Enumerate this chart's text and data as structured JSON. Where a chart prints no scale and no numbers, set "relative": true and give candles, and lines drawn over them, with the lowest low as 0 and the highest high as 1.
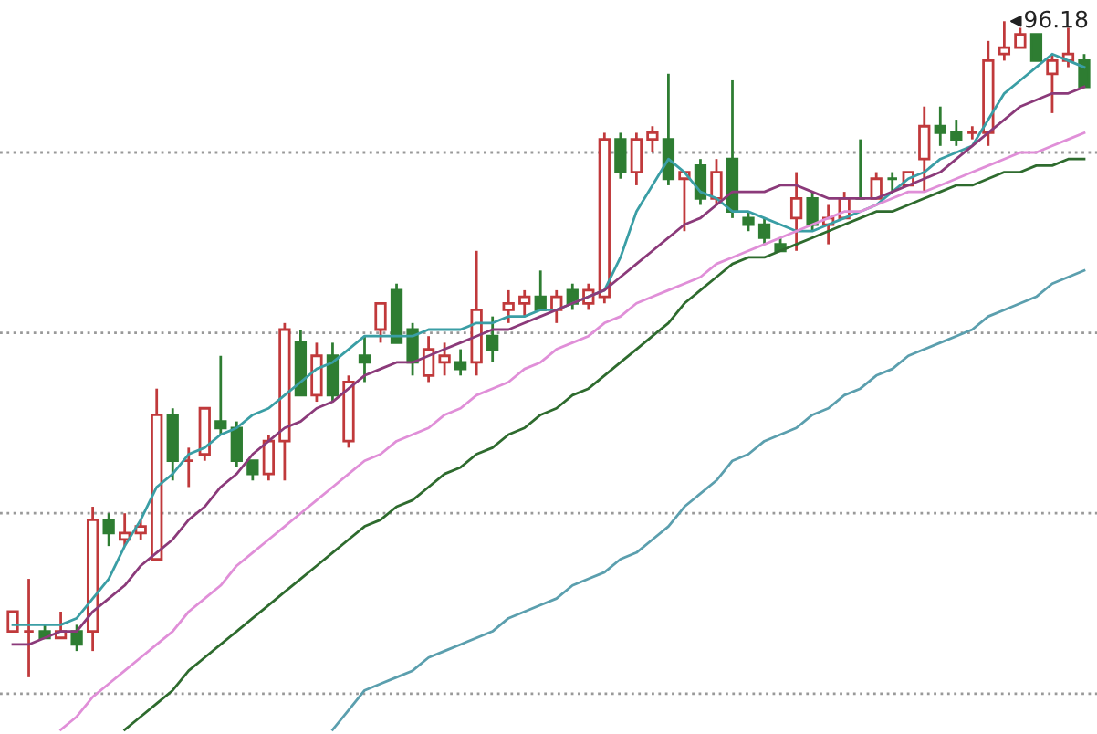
{
  "chart_data": {
    "type": "candlestick",
    "relative": true,
    "categories": [
      null,
      null,
      null,
      null,
      null,
      null,
      null,
      null,
      null,
      null,
      null,
      null,
      null,
      null,
      null,
      null,
      null,
      null,
      null,
      null,
      null,
      null,
      null,
      null,
      null,
      null,
      null,
      null,
      null,
      null,
      null,
      null,
      null,
      null,
      null,
      null,
      null,
      null,
      null,
      null,
      null,
      null,
      null,
      null,
      null,
      null,
      null,
      null,
      null,
      null,
      null,
      null,
      null,
      null,
      null,
      null,
      null,
      null,
      null,
      null,
      null,
      null,
      null,
      null,
      null,
      null,
      null,
      null
    ],
    "ohlc": [
      [
        0.07,
        0.1,
        0.07,
        0.1
      ],
      [
        0.07,
        0.15,
        0,
        0.07
      ],
      [
        0.07,
        0.08,
        0.06,
        0.06
      ],
      [
        0.06,
        0.1,
        0.06,
        0.07
      ],
      [
        0.07,
        0.08,
        0.04,
        0.05
      ],
      [
        0.07,
        0.26,
        0.04,
        0.24
      ],
      [
        0.24,
        0.25,
        0.2,
        0.22
      ],
      [
        0.21,
        0.25,
        0.2,
        0.22
      ],
      [
        0.22,
        0.24,
        0.21,
        0.23
      ],
      [
        0.18,
        0.44,
        0.18,
        0.4
      ],
      [
        0.4,
        0.41,
        0.3,
        0.33
      ],
      [
        0.33,
        0.35,
        0.29,
        0.33
      ],
      [
        0.34,
        0.41,
        0.33,
        0.41
      ],
      [
        0.39,
        0.49,
        0.37,
        0.38
      ],
      [
        0.38,
        0.39,
        0.32,
        0.33
      ],
      [
        0.33,
        0.33,
        0.3,
        0.31
      ],
      [
        0.31,
        0.37,
        0.3,
        0.36
      ],
      [
        0.36,
        0.54,
        0.3,
        0.53
      ],
      [
        0.51,
        0.53,
        0.43,
        0.43
      ],
      [
        0.43,
        0.51,
        0.42,
        0.49
      ],
      [
        0.49,
        0.51,
        0.42,
        0.43
      ],
      [
        0.36,
        0.46,
        0.35,
        0.45
      ],
      [
        0.49,
        0.52,
        0.45,
        0.48
      ],
      [
        0.53,
        0.57,
        0.51,
        0.57
      ],
      [
        0.59,
        0.6,
        0.51,
        0.51
      ],
      [
        0.53,
        0.54,
        0.46,
        0.48
      ],
      [
        0.46,
        0.52,
        0.45,
        0.5
      ],
      [
        0.48,
        0.51,
        0.46,
        0.49
      ],
      [
        0.48,
        0.5,
        0.46,
        0.47
      ],
      [
        0.48,
        0.65,
        0.46,
        0.56
      ],
      [
        0.52,
        0.55,
        0.48,
        0.5
      ],
      [
        0.56,
        0.59,
        0.54,
        0.57
      ],
      [
        0.57,
        0.59,
        0.55,
        0.58
      ],
      [
        0.58,
        0.62,
        0.56,
        0.56
      ],
      [
        0.56,
        0.59,
        0.54,
        0.58
      ],
      [
        0.59,
        0.6,
        0.56,
        0.57
      ],
      [
        0.57,
        0.6,
        0.56,
        0.59
      ],
      [
        0.58,
        0.83,
        0.57,
        0.82
      ],
      [
        0.82,
        0.83,
        0.76,
        0.77
      ],
      [
        0.77,
        0.83,
        0.75,
        0.82
      ],
      [
        0.82,
        0.84,
        0.8,
        0.83
      ],
      [
        0.82,
        0.92,
        0.75,
        0.76
      ],
      [
        0.76,
        0.77,
        0.68,
        0.77
      ],
      [
        0.78,
        0.79,
        0.72,
        0.73
      ],
      [
        0.73,
        0.79,
        0.72,
        0.77
      ],
      [
        0.79,
        0.91,
        0.7,
        0.71
      ],
      [
        0.7,
        0.71,
        0.68,
        0.69
      ],
      [
        0.69,
        0.7,
        0.66,
        0.67
      ],
      [
        0.66,
        0.67,
        0.65,
        0.65
      ],
      [
        0.7,
        0.77,
        0.65,
        0.73
      ],
      [
        0.73,
        0.74,
        0.68,
        0.69
      ],
      [
        0.69,
        0.72,
        0.66,
        0.7
      ],
      [
        0.7,
        0.74,
        0.7,
        0.73
      ],
      [
        0.73,
        0.82,
        0.73,
        0.73
      ],
      [
        0.73,
        0.77,
        0.73,
        0.76
      ],
      [
        0.76,
        0.77,
        0.74,
        0.76
      ],
      [
        0.75,
        0.77,
        0.75,
        0.77
      ],
      [
        0.79,
        0.87,
        0.74,
        0.84
      ],
      [
        0.84,
        0.87,
        0.81,
        0.83
      ],
      [
        0.83,
        0.85,
        0.81,
        0.82
      ],
      [
        0.83,
        0.84,
        0.82,
        0.83
      ],
      [
        0.83,
        0.97,
        0.81,
        0.94
      ],
      [
        0.95,
        1.0,
        0.94,
        0.96
      ],
      [
        0.96,
        0.99,
        0.96,
        0.98
      ],
      [
        0.98,
        0.98,
        0.94,
        0.94
      ],
      [
        0.92,
        0.95,
        0.86,
        0.94
      ],
      [
        0.94,
        0.99,
        0.93,
        0.95
      ],
      [
        0.94,
        0.95,
        0.9,
        0.9
      ]
    ],
    "colors": [
      "#c0393b",
      "#c0393b",
      "#2e7d32",
      "#c0393b",
      "#2e7d32",
      "#c0393b",
      "#2e7d32",
      "#c0393b",
      "#c0393b",
      "#c0393b",
      "#2e7d32",
      "#c0393b",
      "#c0393b",
      "#2e7d32",
      "#2e7d32",
      "#2e7d32",
      "#c0393b",
      "#c0393b",
      "#2e7d32",
      "#c0393b",
      "#2e7d32",
      "#c0393b",
      "#2e7d32",
      "#c0393b",
      "#2e7d32",
      "#2e7d32",
      "#c0393b",
      "#c0393b",
      "#2e7d32",
      "#c0393b",
      "#2e7d32",
      "#c0393b",
      "#c0393b",
      "#2e7d32",
      "#c0393b",
      "#2e7d32",
      "#c0393b",
      "#c0393b",
      "#2e7d32",
      "#c0393b",
      "#c0393b",
      "#2e7d32",
      "#c0393b",
      "#2e7d32",
      "#c0393b",
      "#2e7d32",
      "#2e7d32",
      "#2e7d32",
      "#2e7d32",
      "#c0393b",
      "#2e7d32",
      "#c0393b",
      "#c0393b",
      "#2e7d32",
      "#c0393b",
      "#2e7d32",
      "#c0393b",
      "#c0393b",
      "#2e7d32",
      "#2e7d32",
      "#c0393b",
      "#c0393b",
      "#c0393b",
      "#c0393b",
      "#2e7d32",
      "#c0393b",
      "#c0393b",
      "#2e7d32"
    ],
    "series": [
      {
        "type": "line",
        "color": "#3a9ea5",
        "values": [
          0.08,
          0.08,
          0.08,
          0.08,
          0.09,
          0.12,
          0.15,
          0.2,
          0.24,
          0.29,
          0.31,
          0.34,
          0.35,
          0.37,
          0.38,
          0.4,
          0.41,
          0.43,
          0.45,
          0.47,
          0.48,
          0.5,
          0.52,
          0.52,
          0.52,
          0.52,
          0.53,
          0.53,
          0.53,
          0.54,
          0.54,
          0.55,
          0.55,
          0.56,
          0.56,
          0.57,
          0.58,
          0.59,
          0.64,
          0.71,
          0.75,
          0.79,
          0.77,
          0.74,
          0.73,
          0.71,
          0.71,
          0.7,
          0.69,
          0.68,
          0.68,
          0.69,
          0.7,
          0.71,
          0.72,
          0.74,
          0.76,
          0.77,
          0.79,
          0.8,
          0.81,
          0.85,
          0.89,
          0.91,
          0.93,
          0.95,
          0.94,
          0.93
        ]
      },
      {
        "type": "line",
        "color": "#8b3a7a",
        "values": [
          0.05,
          0.05,
          0.06,
          0.07,
          0.07,
          0.1,
          0.12,
          0.14,
          0.17,
          0.19,
          0.21,
          0.24,
          0.26,
          0.29,
          0.31,
          0.34,
          0.36,
          0.38,
          0.39,
          0.41,
          0.42,
          0.44,
          0.46,
          0.47,
          0.48,
          0.48,
          0.49,
          0.5,
          0.51,
          0.52,
          0.53,
          0.53,
          0.54,
          0.55,
          0.56,
          0.57,
          0.58,
          0.59,
          0.61,
          0.63,
          0.65,
          0.67,
          0.69,
          0.7,
          0.72,
          0.74,
          0.74,
          0.74,
          0.75,
          0.75,
          0.74,
          0.73,
          0.73,
          0.73,
          0.73,
          0.74,
          0.75,
          0.76,
          0.77,
          0.79,
          0.81,
          0.83,
          0.85,
          0.87,
          0.88,
          0.89,
          0.89,
          0.9
        ]
      },
      {
        "type": "line",
        "color": "#e08fd8",
        "values": [
          null,
          null,
          null,
          -0.08,
          -0.06,
          -0.03,
          -0.01,
          0.01,
          0.03,
          0.05,
          0.07,
          0.1,
          0.12,
          0.14,
          0.17,
          0.19,
          0.21,
          0.23,
          0.25,
          0.27,
          0.29,
          0.31,
          0.33,
          0.34,
          0.36,
          0.37,
          0.38,
          0.4,
          0.41,
          0.43,
          0.44,
          0.45,
          0.47,
          0.48,
          0.5,
          0.51,
          0.52,
          0.54,
          0.55,
          0.57,
          0.58,
          0.59,
          0.6,
          0.61,
          0.63,
          0.64,
          0.65,
          0.66,
          0.67,
          0.68,
          0.69,
          0.7,
          0.71,
          0.71,
          0.72,
          0.73,
          0.74,
          0.74,
          0.75,
          0.76,
          0.77,
          0.78,
          0.79,
          0.8,
          0.8,
          0.81,
          0.82,
          0.83
        ]
      },
      {
        "type": "line",
        "color": "#2e6b2e",
        "values": [
          null,
          null,
          null,
          null,
          null,
          null,
          null,
          -0.08,
          -0.06,
          -0.04,
          -0.02,
          0.01,
          0.03,
          0.05,
          0.07,
          0.09,
          0.11,
          0.13,
          0.15,
          0.17,
          0.19,
          0.21,
          0.23,
          0.24,
          0.26,
          0.27,
          0.29,
          0.31,
          0.32,
          0.34,
          0.35,
          0.37,
          0.38,
          0.4,
          0.41,
          0.43,
          0.44,
          0.46,
          0.48,
          0.5,
          0.52,
          0.54,
          0.57,
          0.59,
          0.61,
          0.63,
          0.64,
          0.64,
          0.65,
          0.66,
          0.67,
          0.68,
          0.69,
          0.7,
          0.71,
          0.71,
          0.72,
          0.73,
          0.74,
          0.75,
          0.75,
          0.76,
          0.77,
          0.77,
          0.78,
          0.78,
          0.79,
          0.79
        ]
      },
      {
        "type": "line",
        "color": "#5b9fae",
        "values": [
          null,
          null,
          null,
          null,
          null,
          null,
          null,
          null,
          null,
          null,
          null,
          null,
          null,
          null,
          null,
          null,
          null,
          null,
          null,
          null,
          -0.08,
          -0.05,
          -0.02,
          -0.01,
          0.0,
          0.01,
          0.03,
          0.04,
          0.05,
          0.06,
          0.07,
          0.09,
          0.1,
          0.11,
          0.12,
          0.14,
          0.15,
          0.16,
          0.18,
          0.19,
          0.21,
          0.23,
          0.26,
          0.28,
          0.3,
          0.33,
          0.34,
          0.36,
          0.37,
          0.38,
          0.4,
          0.41,
          0.43,
          0.44,
          0.46,
          0.47,
          0.49,
          0.5,
          0.51,
          0.52,
          0.53,
          0.55,
          0.56,
          0.57,
          0.58,
          0.6,
          0.61,
          0.62
        ]
      }
    ],
    "ref_lines": [
      {
        "axis": "y",
        "value": 0.8,
        "color": "#999999",
        "line_style": "dotted"
      },
      {
        "axis": "y",
        "value": 0.525,
        "color": "#999999",
        "line_style": "dotted"
      },
      {
        "axis": "y",
        "value": 0.25,
        "color": "#999999",
        "line_style": "dotted"
      },
      {
        "axis": "y",
        "value": -0.025,
        "color": "#999999",
        "line_style": "dotted"
      }
    ],
    "annotations": [
      "96.18"
    ]
  }
}
